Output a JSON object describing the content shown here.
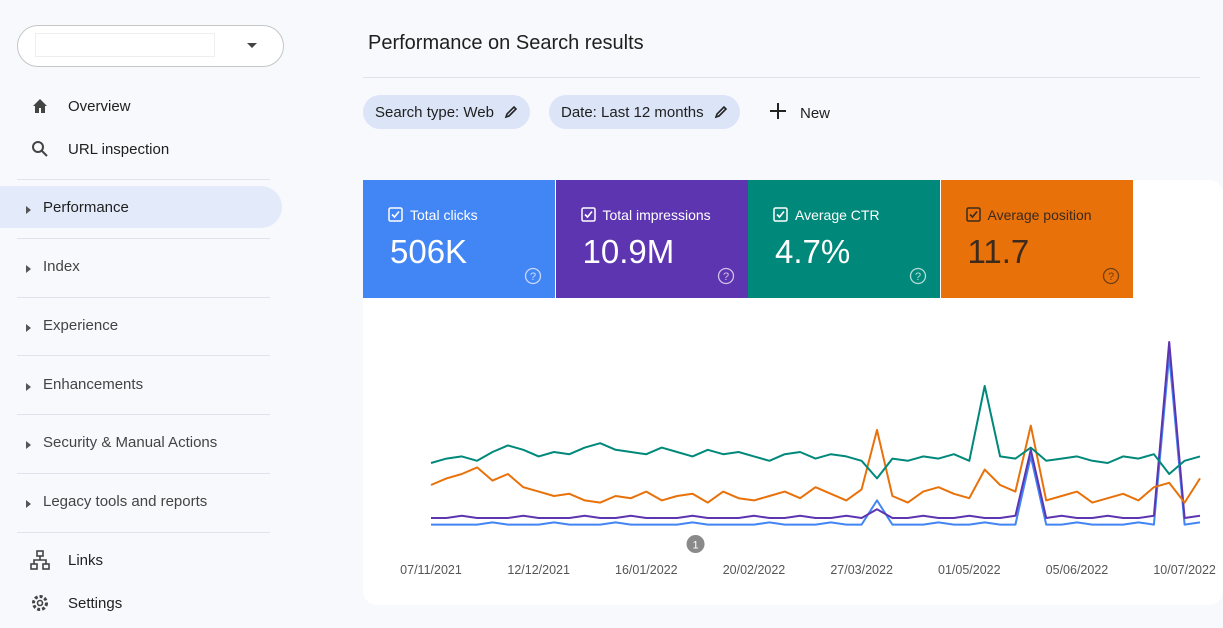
{
  "sidebar": {
    "items": [
      "Overview",
      "URL inspection",
      "Performance",
      "Index",
      "Experience",
      "Enhancements",
      "Security & Manual Actions",
      "Legacy tools and reports",
      "Links",
      "Settings"
    ],
    "selected": 2
  },
  "header": {
    "title": "Performance on Search results"
  },
  "filters": {
    "chips": [
      "Search type: Web",
      "Date: Last 12 months"
    ],
    "new": "New"
  },
  "chart_data": {
    "type": "line",
    "xlim": [
      0,
      50
    ],
    "ylim": [
      0,
      100
    ],
    "xticks": [
      {
        "value": 0,
        "label": "07/11/2021"
      },
      {
        "value": 7,
        "label": "12/12/2021"
      },
      {
        "value": 14,
        "label": "16/01/2022"
      },
      {
        "value": 21,
        "label": "20/02/2022"
      },
      {
        "value": 28,
        "label": "27/03/2022"
      },
      {
        "value": 35,
        "label": "01/05/2022"
      },
      {
        "value": 42,
        "label": "05/06/2022"
      },
      {
        "value": 49,
        "label": "10/07/2022"
      }
    ],
    "annotations": [
      {
        "label": "1",
        "x": 17.2
      }
    ],
    "series": [
      {
        "name": "Total clicks",
        "total": "506K",
        "color": "#4285f4",
        "values": [
          7,
          7,
          7,
          7,
          8,
          7,
          7,
          7,
          8,
          7,
          7,
          7,
          8,
          7,
          7,
          7,
          7,
          8,
          7,
          7,
          7,
          7,
          8,
          7,
          7,
          7,
          8,
          7,
          7,
          18,
          7,
          7,
          7,
          8,
          7,
          7,
          8,
          7,
          7,
          38,
          7,
          7,
          8,
          7,
          7,
          7,
          8,
          7,
          84,
          7,
          8
        ]
      },
      {
        "name": "Total impressions",
        "total": "10.9M",
        "color": "#5e35b1",
        "values": [
          10,
          10,
          11,
          10,
          10,
          10,
          11,
          10,
          10,
          10,
          11,
          10,
          10,
          11,
          10,
          10,
          10,
          11,
          10,
          10,
          10,
          11,
          10,
          10,
          11,
          10,
          10,
          11,
          10,
          14,
          10,
          10,
          11,
          10,
          10,
          11,
          10,
          10,
          11,
          41,
          10,
          11,
          10,
          10,
          11,
          10,
          10,
          11,
          90,
          10,
          11
        ]
      },
      {
        "name": "Average CTR",
        "total": "4.7%",
        "color": "#00897b",
        "values": [
          35,
          37,
          38,
          36,
          40,
          43,
          41,
          38,
          40,
          39,
          42,
          44,
          41,
          40,
          39,
          42,
          40,
          38,
          41,
          39,
          40,
          38,
          36,
          39,
          40,
          37,
          39,
          38,
          36,
          28,
          37,
          36,
          38,
          37,
          39,
          36,
          70,
          38,
          37,
          42,
          36,
          37,
          38,
          36,
          35,
          38,
          37,
          39,
          30,
          36,
          38
        ]
      },
      {
        "name": "Average position",
        "total": "11.7",
        "color": "#e8710a",
        "values": [
          25,
          28,
          30,
          33,
          27,
          30,
          24,
          22,
          20,
          21,
          18,
          17,
          20,
          19,
          22,
          18,
          20,
          21,
          17,
          22,
          19,
          18,
          20,
          22,
          19,
          24,
          21,
          18,
          23,
          50,
          20,
          17,
          22,
          24,
          21,
          19,
          32,
          25,
          22,
          52,
          18,
          20,
          22,
          17,
          19,
          21,
          18,
          24,
          26,
          17,
          28
        ]
      }
    ]
  }
}
